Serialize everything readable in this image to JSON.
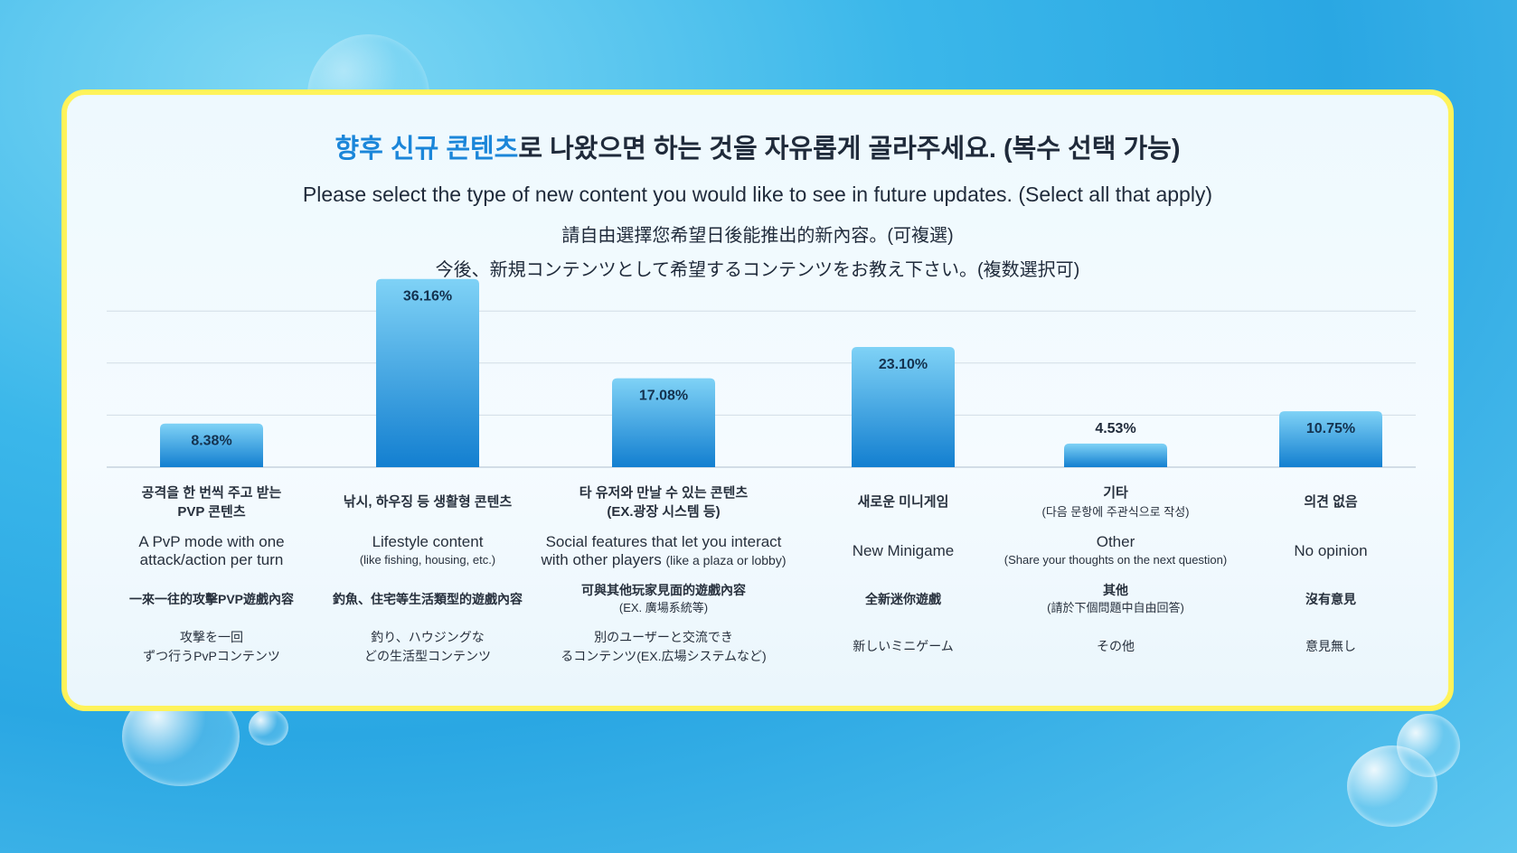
{
  "title": {
    "highlight": "향후 신규 콘텐츠",
    "rest": "로 나왔으면 하는 것을 자유롭게 골라주세요. (복수 선택 가능)"
  },
  "subtitle_en": "Please select the type of new content you would like to see in future updates. (Select all that apply)",
  "subtitle_zh": "請自由選擇您希望日後能推出的新內容。(可複選)",
  "subtitle_ja": "今後、新規コンテンツとして希望するコンテンツをお教え下さい。(複数選択可)",
  "colors": {
    "accent": "#1b86d9",
    "border": "#fff35a",
    "bar_top": "#7fd2f6",
    "bar_bottom": "#137fd0"
  },
  "chart_data": {
    "type": "bar",
    "ylim": [
      0,
      40
    ],
    "grid": true,
    "values": [
      8.38,
      36.16,
      17.08,
      23.1,
      4.53,
      10.75
    ],
    "value_labels": [
      "8.38%",
      "36.16%",
      "17.08%",
      "23.10%",
      "4.53%",
      "10.75%"
    ],
    "categories": [
      {
        "ko": [
          "공격을 한 번씩 주고 받는",
          "PVP 콘텐츠"
        ],
        "en": [
          "A PvP mode with one",
          "attack/action per turn"
        ],
        "en_small": [],
        "zh": [
          "一來一往的攻擊PVP遊戲內容"
        ],
        "zh_small": [],
        "ja": [
          "攻撃を一回",
          "ずつ行うPvPコンテンツ"
        ]
      },
      {
        "ko": [
          "낚시, 하우징 등 생활형 콘텐츠"
        ],
        "en": [
          "Lifestyle content"
        ],
        "en_small": [
          "(like fishing, housing, etc.)"
        ],
        "zh": [
          "釣魚、住宅等生活類型的遊戲內容"
        ],
        "zh_small": [],
        "ja": [
          "釣り、ハウジングな",
          "どの生活型コンテンツ"
        ]
      },
      {
        "ko": [
          "타 유저와 만날 수 있는 콘텐츠",
          "(EX.광장 시스템 등)"
        ],
        "en": [
          "Social features that let you interact",
          "with other players"
        ],
        "en_small": [
          "(like a plaza or lobby)"
        ],
        "zh": [
          "可與其他玩家見面的遊戲內容"
        ],
        "zh_small": [
          "(EX. 廣場系統等)"
        ],
        "ja": [
          "別のユーザーと交流でき",
          "るコンテンツ(EX.広場システムなど)"
        ]
      },
      {
        "ko": [
          "새로운 미니게임"
        ],
        "en": [
          "New Minigame"
        ],
        "en_small": [],
        "zh": [
          "全新迷你遊戲"
        ],
        "zh_small": [],
        "ja": [
          "新しいミニゲーム"
        ]
      },
      {
        "ko": [
          "기타"
        ],
        "ko_small": [
          "(다음 문항에 주관식으로 작성)"
        ],
        "en": [
          "Other"
        ],
        "en_small": [
          "(Share your thoughts on the next question)"
        ],
        "zh": [
          "其他"
        ],
        "zh_small": [
          "(請於下個問題中自由回答)"
        ],
        "ja": [
          "その他"
        ]
      },
      {
        "ko": [
          "의견 없음"
        ],
        "en": [
          "No opinion"
        ],
        "en_small": [],
        "zh": [
          "沒有意見"
        ],
        "zh_small": [],
        "ja": [
          "意見無し"
        ]
      }
    ]
  }
}
